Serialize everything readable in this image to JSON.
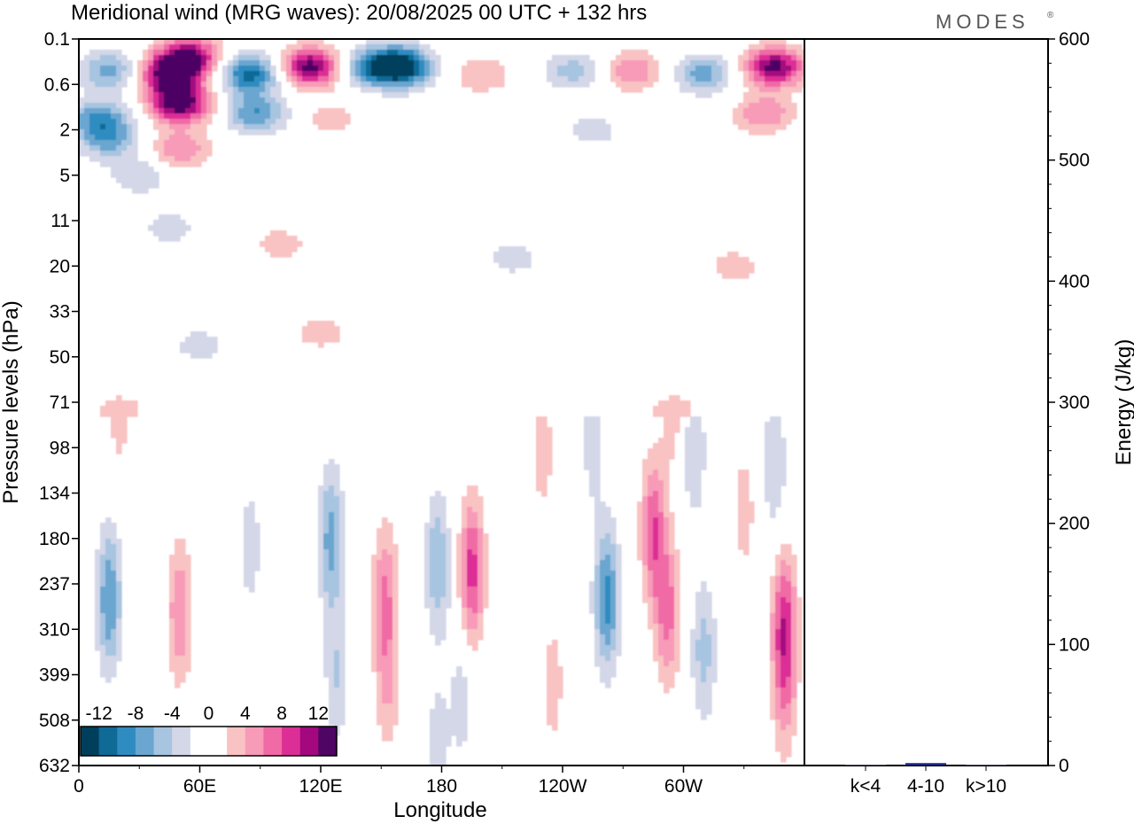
{
  "title": "Meridional wind (MRG waves):  20/08/2025  00 UTC  + 132 hrs",
  "logo": "MODES",
  "logo_mark": "®",
  "colors": {
    "levels": [
      "#003f5c",
      "#0f6a96",
      "#2f8cc0",
      "#6aa6cf",
      "#a7c4e0",
      "#d3d7e8",
      "#ffffff",
      "#ffffff",
      "#f9c3c3",
      "#f79bb8",
      "#f06aa5",
      "#dc2f96",
      "#a3087e",
      "#4e0563"
    ]
  },
  "chart_data": [
    {
      "type": "heatmap",
      "title": "Meridional wind (MRG waves)",
      "xlabel": "Longitude",
      "ylabel": "Pressure levels (hPa)",
      "x_ticks": [
        "0",
        "60E",
        "120E",
        "180",
        "120W",
        "60W"
      ],
      "x_tick_degrees": [
        0,
        60,
        120,
        180,
        240,
        300
      ],
      "x_range": [
        0,
        360
      ],
      "y_ticks": [
        "0.1",
        "0.6",
        "2",
        "5",
        "11",
        "20",
        "33",
        "50",
        "71",
        "98",
        "134",
        "180",
        "237",
        "310",
        "399",
        "508",
        "632"
      ],
      "colorbar": {
        "labels": [
          "-12",
          "-8",
          "-4",
          "0",
          "4",
          "8",
          "12"
        ],
        "levels": [
          -14,
          -12,
          -10,
          -8,
          -6,
          -4,
          -2,
          0,
          2,
          4,
          6,
          8,
          10,
          12,
          14
        ]
      },
      "blobs": [
        {
          "lon": 15,
          "p": 0.35,
          "v": -7
        },
        {
          "lon": 10,
          "p": 1.5,
          "v": -8
        },
        {
          "lon": 15,
          "p": 2.5,
          "v": -6
        },
        {
          "lon": 30,
          "p": 5,
          "v": -4
        },
        {
          "lon": 45,
          "p": 0.4,
          "v": 13
        },
        {
          "lon": 50,
          "p": 1,
          "v": 14
        },
        {
          "lon": 55,
          "p": 0.2,
          "v": 12
        },
        {
          "lon": 50,
          "p": 3,
          "v": 6
        },
        {
          "lon": 85,
          "p": 0.4,
          "v": -11
        },
        {
          "lon": 88,
          "p": 1.3,
          "v": -8
        },
        {
          "lon": 115,
          "p": 0.3,
          "v": 13
        },
        {
          "lon": 160,
          "p": 0.3,
          "v": -14
        },
        {
          "lon": 145,
          "p": 0.3,
          "v": -8
        },
        {
          "lon": 200,
          "p": 0.4,
          "v": 4
        },
        {
          "lon": 245,
          "p": 0.35,
          "v": -5
        },
        {
          "lon": 275,
          "p": 0.35,
          "v": 6
        },
        {
          "lon": 310,
          "p": 0.4,
          "v": -7
        },
        {
          "lon": 345,
          "p": 0.3,
          "v": 13
        },
        {
          "lon": 340,
          "p": 1.3,
          "v": 6
        },
        {
          "lon": 255,
          "p": 2,
          "v": -3
        },
        {
          "lon": 125,
          "p": 1.5,
          "v": 3
        },
        {
          "lon": 100,
          "p": 15,
          "v": 3
        },
        {
          "lon": 45,
          "p": 12,
          "v": -3
        },
        {
          "lon": 215,
          "p": 18,
          "v": -3
        },
        {
          "lon": 325,
          "p": 20,
          "v": 3
        },
        {
          "lon": 60,
          "p": 45,
          "v": -3
        },
        {
          "lon": 120,
          "p": 40,
          "v": 3
        },
        {
          "lon": 20,
          "p": 75,
          "v": 3
        },
        {
          "lon": 255,
          "p": 95,
          "v": -3
        },
        {
          "lon": 295,
          "p": 75,
          "v": 3
        },
        {
          "lon": 305,
          "p": 100,
          "v": -4
        },
        {
          "lon": 345,
          "p": 110,
          "v": -4
        },
        {
          "lon": 15,
          "p": 260,
          "v": -8
        },
        {
          "lon": 50,
          "p": 280,
          "v": 6
        },
        {
          "lon": 85,
          "p": 190,
          "v": -3
        },
        {
          "lon": 125,
          "p": 180,
          "v": -7
        },
        {
          "lon": 128,
          "p": 400,
          "v": -4
        },
        {
          "lon": 152,
          "p": 250,
          "v": 6
        },
        {
          "lon": 153,
          "p": 420,
          "v": 4
        },
        {
          "lon": 178,
          "p": 210,
          "v": -6
        },
        {
          "lon": 195,
          "p": 220,
          "v": 9
        },
        {
          "lon": 190,
          "p": 450,
          "v": -3
        },
        {
          "lon": 235,
          "p": 420,
          "v": 3
        },
        {
          "lon": 262,
          "p": 260,
          "v": -9
        },
        {
          "lon": 285,
          "p": 170,
          "v": 8
        },
        {
          "lon": 292,
          "p": 280,
          "v": 7
        },
        {
          "lon": 310,
          "p": 350,
          "v": -5
        },
        {
          "lon": 330,
          "p": 150,
          "v": 3
        },
        {
          "lon": 350,
          "p": 300,
          "v": 9
        },
        {
          "lon": 350,
          "p": 450,
          "v": 4
        },
        {
          "lon": 230,
          "p": 100,
          "v": 3
        },
        {
          "lon": 178,
          "p": 580,
          "v": -3
        }
      ]
    },
    {
      "type": "bar",
      "ylabel": "Energy (J/kg)",
      "categories": [
        "k<4",
        "4-10",
        "k>10"
      ],
      "values": [
        0.5,
        2,
        0.3
      ],
      "ylim": [
        0,
        600
      ],
      "y_ticks": [
        "0",
        "100",
        "200",
        "300",
        "400",
        "500",
        "600"
      ]
    }
  ]
}
